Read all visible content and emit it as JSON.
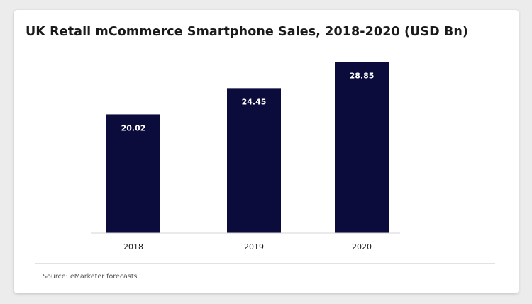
{
  "title": "UK Retail mCommerce Smartphone Sales, 2018-2020 (USD Bn)",
  "source": "Source: eMarketer forecasts",
  "colors": {
    "bar": "#0b0b3c",
    "bar_label": "#ffffff",
    "axis": "#d4d4d4",
    "tick": "#1a1a1a"
  },
  "chart_data": {
    "type": "bar",
    "title": "UK Retail mCommerce Smartphone Sales, 2018-2020 (USD Bn)",
    "categories": [
      "2018",
      "2019",
      "2020"
    ],
    "values": [
      20.02,
      24.45,
      28.85
    ],
    "data_labels": [
      "20.02",
      "24.45",
      "28.85"
    ],
    "xlabel": "",
    "ylabel": "",
    "grid": false,
    "legend": "none"
  }
}
